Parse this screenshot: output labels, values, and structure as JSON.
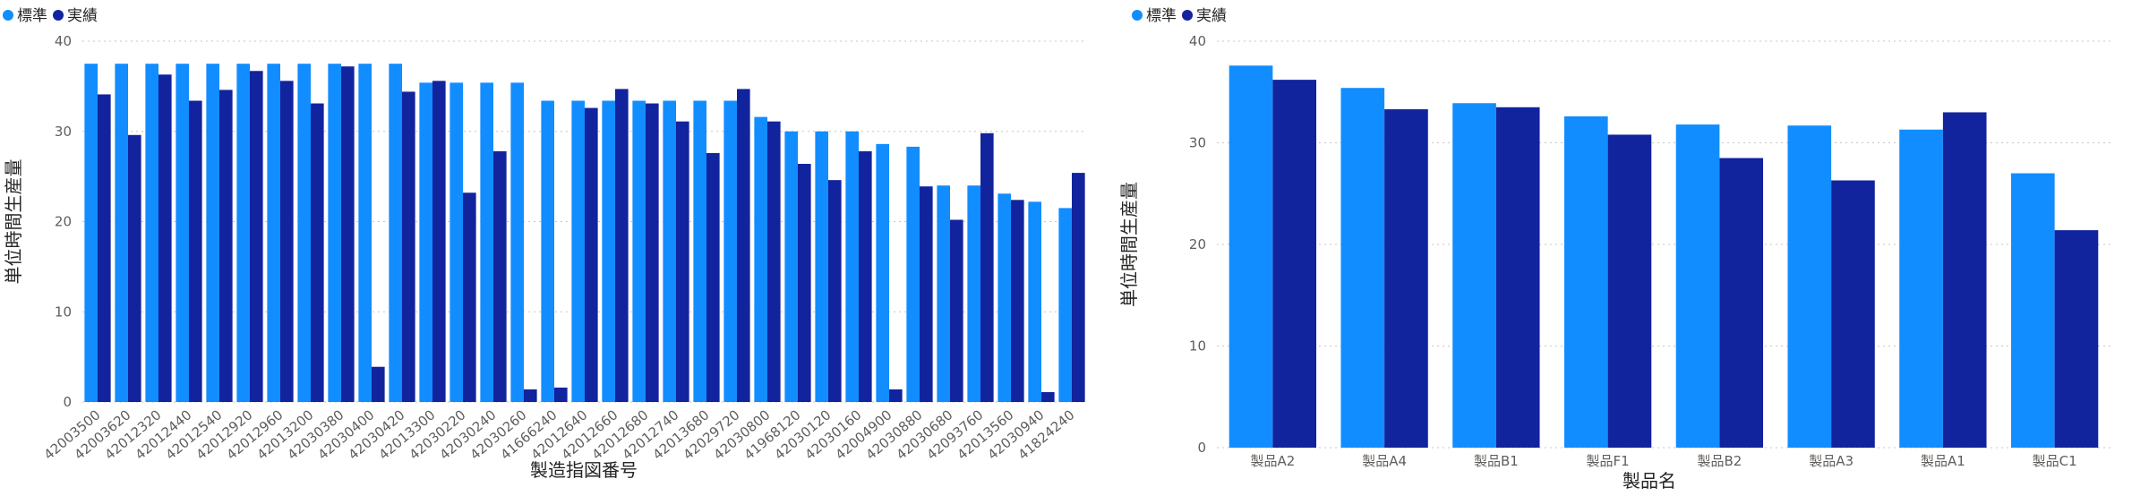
{
  "colors": {
    "standard": "#118dff",
    "actual": "#12239e"
  },
  "chart_data": [
    {
      "type": "bar",
      "legend": [
        "標準",
        "実績"
      ],
      "xlabel": "製造指図番号",
      "ylabel": "単位時間生産量",
      "ylim": [
        0,
        40
      ],
      "yticks": [
        "0",
        "10",
        "20",
        "30",
        "40"
      ],
      "grid": true,
      "legend_position": "top-left",
      "categories": [
        "42003500",
        "42003620",
        "42012320",
        "42012440",
        "42012540",
        "42012920",
        "42012960",
        "42013200",
        "42030380",
        "42030400",
        "42030420",
        "42013300",
        "42030220",
        "42030240",
        "42030260",
        "41666240",
        "42012640",
        "42012660",
        "42012680",
        "42012740",
        "42013680",
        "42029720",
        "42030800",
        "41968120",
        "42030120",
        "42030160",
        "42004900",
        "42030880",
        "42030680",
        "42093760",
        "42013560",
        "42030940",
        "41824240"
      ],
      "series": [
        {
          "name": "標準",
          "values": [
            37.5,
            37.5,
            37.5,
            37.5,
            37.5,
            37.5,
            37.5,
            37.5,
            37.5,
            37.5,
            37.5,
            35.4,
            35.4,
            35.4,
            35.4,
            33.4,
            33.4,
            33.4,
            33.4,
            33.4,
            33.4,
            33.4,
            31.6,
            30.0,
            30.0,
            30.0,
            28.6,
            28.3,
            24.0,
            24.0,
            23.1,
            22.2,
            21.5
          ]
        },
        {
          "name": "実績",
          "values": [
            34.1,
            29.6,
            36.3,
            33.4,
            34.6,
            36.7,
            35.6,
            33.1,
            37.2,
            3.9,
            34.4,
            35.6,
            23.2,
            27.8,
            1.4,
            1.6,
            32.6,
            34.7,
            33.1,
            31.1,
            27.6,
            34.7,
            31.1,
            26.4,
            24.6,
            27.8,
            1.4,
            23.9,
            20.2,
            29.8,
            22.4,
            1.1,
            25.4
          ]
        }
      ]
    },
    {
      "type": "bar",
      "legend": [
        "標準",
        "実績"
      ],
      "xlabel": "製品名",
      "ylabel": "単位時間生産量",
      "ylim": [
        0,
        40
      ],
      "yticks": [
        "0",
        "10",
        "20",
        "30",
        "40"
      ],
      "grid": true,
      "legend_position": "top-left",
      "categories": [
        "製品A2",
        "製品A4",
        "製品B1",
        "製品F1",
        "製品B2",
        "製品A3",
        "製品A1",
        "製品C1"
      ],
      "series": [
        {
          "name": "標準",
          "values": [
            37.6,
            35.4,
            33.9,
            32.6,
            31.8,
            31.7,
            31.3,
            27.0
          ]
        },
        {
          "name": "実績",
          "values": [
            36.2,
            33.3,
            33.5,
            30.8,
            28.5,
            26.3,
            33.0,
            21.4
          ]
        }
      ]
    }
  ]
}
